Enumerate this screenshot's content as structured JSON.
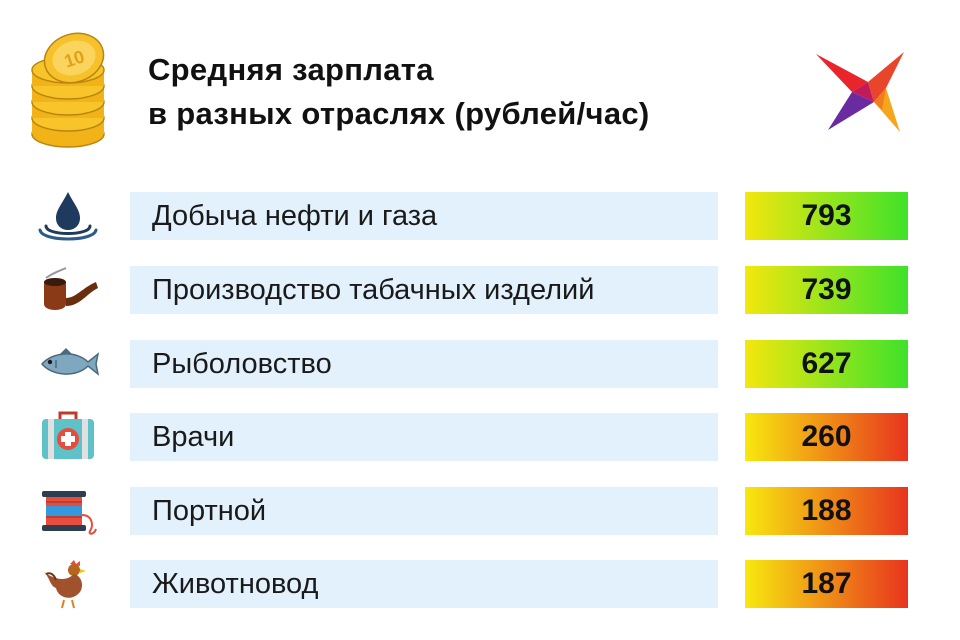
{
  "header": {
    "title_line1": "Средняя зарплата",
    "title_line2": "в разных отраслях (рублей/час)"
  },
  "icons": {
    "coins": "coin-stack-icon",
    "logo": "swallow-logo-icon"
  },
  "colors": {
    "row_background": "#e2f1fb",
    "high_gradient": [
      "#f3e70e",
      "#3ee22a"
    ],
    "low_gradient": [
      "#f7e80f",
      "#e8341e"
    ]
  },
  "rows": [
    {
      "label": "Добыча нефти и газа",
      "value": "793",
      "icon": "oil-drop-icon",
      "tier": "high"
    },
    {
      "label": "Производство табачных изделий",
      "value": "739",
      "icon": "pipe-icon",
      "tier": "high"
    },
    {
      "label": "Рыболовство",
      "value": "627",
      "icon": "fish-icon",
      "tier": "high"
    },
    {
      "label": "Врачи",
      "value": "260",
      "icon": "medkit-icon",
      "tier": "low"
    },
    {
      "label": "Портной",
      "value": "188",
      "icon": "thread-spool-icon",
      "tier": "low"
    },
    {
      "label": "Животновод",
      "value": "187",
      "icon": "chicken-icon",
      "tier": "low"
    }
  ],
  "chart_data": {
    "type": "table",
    "title": "Средняя зарплата в разных отраслях (рублей/час)",
    "categories": [
      "Добыча нефти и газа",
      "Производство табачных изделий",
      "Рыболовство",
      "Врачи",
      "Портной",
      "Животновод"
    ],
    "values": [
      793,
      739,
      627,
      260,
      188,
      187
    ]
  }
}
